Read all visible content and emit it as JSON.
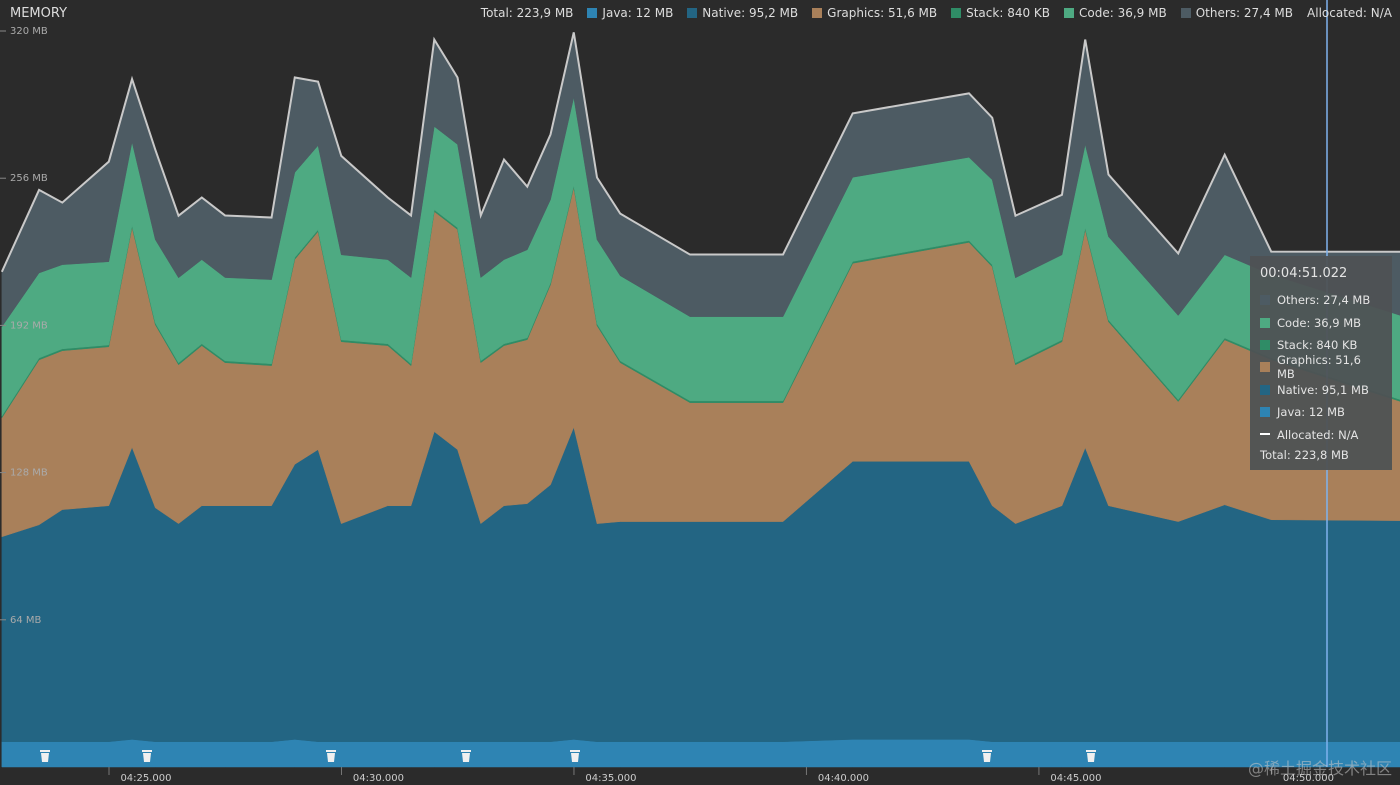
{
  "header": {
    "title": "MEMORY",
    "total": "Total: 223,9 MB",
    "allocated": "Allocated: N/A"
  },
  "chart_data": {
    "type": "stacked-area",
    "x": [
      261.9,
      262.7,
      263.2,
      264.2,
      264.7,
      265.2,
      265.7,
      266.2,
      266.7,
      267.7,
      268.2,
      268.7,
      269.2,
      270.2,
      270.7,
      271.2,
      271.7,
      272.2,
      272.7,
      273.2,
      273.7,
      274.2,
      274.7,
      275.2,
      276.7,
      278.7,
      280.2,
      282.7,
      283.2,
      283.7,
      284.7,
      285.2,
      285.7,
      287.2,
      288.2,
      289.2,
      292.0
    ],
    "series": [
      {
        "name": "Java: 12 MB",
        "color": "#2e84b3",
        "values": [
          11,
          11,
          11,
          11,
          12,
          11,
          11,
          11,
          11,
          11,
          12,
          11,
          11,
          11,
          11,
          11,
          11,
          11,
          11,
          11,
          11,
          12,
          11,
          11,
          11,
          11,
          12,
          12,
          11,
          11,
          11,
          11,
          11,
          11,
          11,
          11,
          11
        ]
      },
      {
        "name": "Native: 95,2 MB",
        "color": "#236583",
        "values": [
          89.1,
          94.3,
          100.9,
          102.6,
          127.0,
          101.7,
          94.8,
          102.6,
          102.6,
          102.6,
          119.6,
          127.0,
          94.8,
          102.6,
          102.6,
          134.8,
          127.0,
          94.8,
          102.6,
          103.5,
          111.7,
          135.7,
          94.8,
          95.7,
          95.7,
          95.7,
          120.9,
          120.9,
          102.6,
          94.8,
          102.6,
          127.8,
          102.6,
          95.7,
          103.0,
          96.5,
          96.1
        ]
      },
      {
        "name": "Graphics: 51,6 MB",
        "color": "#a9805a",
        "values": [
          51.7,
          71.7,
          69.1,
          69.1,
          95.7,
          79.6,
          69.1,
          69.6,
          62.2,
          60.9,
          89.1,
          94.8,
          79.1,
          69.6,
          60.9,
          95.7,
          95.7,
          70.0,
          69.6,
          71.3,
          87.0,
          104.3,
          86.1,
          69.1,
          51.7,
          51.7,
          86.1,
          95.2,
          103.9,
          69.1,
          71.3,
          94.8,
          80.0,
          52.2,
          71.7,
          69.6,
          51.7
        ]
      },
      {
        "name": "Stack: 840 KB",
        "color": "#2f8c66",
        "values": [
          0.8,
          0.8,
          0.8,
          0.8,
          0.8,
          0.8,
          0.8,
          0.8,
          0.8,
          0.8,
          0.8,
          0.8,
          0.8,
          0.8,
          0.8,
          0.8,
          0.8,
          0.8,
          0.8,
          0.8,
          0.8,
          0.8,
          0.8,
          0.8,
          0.8,
          0.8,
          0.8,
          0.8,
          0.8,
          0.8,
          0.8,
          0.8,
          0.8,
          0.8,
          0.8,
          0.8,
          0.8
        ]
      },
      {
        "name": "Code: 36,9 MB",
        "color": "#4eaa82",
        "values": [
          38.8,
          37.0,
          36.6,
          36.2,
          36.2,
          36.2,
          37.0,
          36.6,
          36.2,
          36.6,
          37.0,
          36.6,
          37.0,
          36.6,
          37.5,
          36.2,
          36.2,
          36.2,
          36.6,
          38.3,
          36.2,
          38.3,
          36.6,
          37.0,
          36.6,
          36.6,
          36.6,
          36.2,
          37.0,
          37.0,
          37.0,
          36.2,
          36.2,
          36.6,
          36.2,
          36.2,
          36.6
        ]
      },
      {
        "name": "Others: 27,4 MB",
        "color": "#4d5b63",
        "values": [
          23.9,
          36.1,
          27.0,
          43.5,
          27.4,
          39.1,
          27.0,
          27.0,
          27.0,
          27.0,
          41.3,
          27.8,
          43.0,
          27.0,
          27.0,
          37.8,
          29.1,
          27.0,
          43.5,
          27.4,
          28.3,
          28.3,
          27.0,
          27.0,
          27.0,
          27.0,
          27.8,
          27.8,
          27.0,
          27.0,
          26.1,
          45.7,
          27.0,
          27.0,
          43.5,
          10.0,
          27.8
        ]
      }
    ],
    "xlim": [
      261.86,
      291.97
    ],
    "xticks": [
      {
        "value": 265,
        "label": "04:25.000"
      },
      {
        "value": 270,
        "label": "04:30.000"
      },
      {
        "value": 275,
        "label": "04:35.000"
      },
      {
        "value": 280,
        "label": "04:40.000"
      },
      {
        "value": 285,
        "label": "04:45.000"
      },
      {
        "value": 290,
        "label": "04:50.000"
      }
    ],
    "ylim": [
      0,
      320
    ],
    "yticks": [
      {
        "value": 64,
        "label": "64 MB"
      },
      {
        "value": 128,
        "label": "128 MB"
      },
      {
        "value": 192,
        "label": "192 MB"
      },
      {
        "value": 256,
        "label": "256 MB"
      },
      {
        "value": 320,
        "label": "320 MB"
      }
    ],
    "cursor_x": 290.4
  },
  "tooltip": {
    "time": "00:04:51.022",
    "items": [
      {
        "label": "Others: 27,4 MB",
        "color": "#4d5b63"
      },
      {
        "label": "Code: 36,9 MB",
        "color": "#4eaa82"
      },
      {
        "label": "Stack: 840 KB",
        "color": "#2f8c66"
      },
      {
        "label": "Graphics: 51,6 MB",
        "color": "#a9805a"
      },
      {
        "label": "Native: 95,1 MB",
        "color": "#236583"
      },
      {
        "label": "Java: 12 MB",
        "color": "#2e84b3"
      },
      {
        "label": "Allocated: N/A",
        "color": "#ffffff"
      }
    ],
    "total": "Total: 223,8 MB"
  },
  "watermark": "@稀土掘金技术社区"
}
